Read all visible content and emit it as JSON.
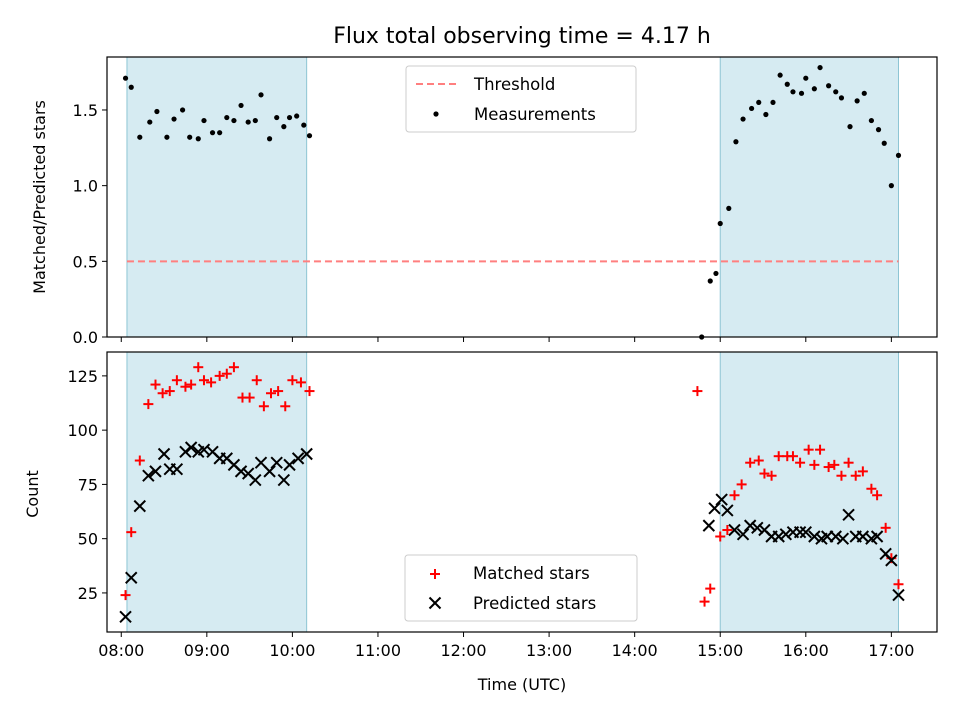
{
  "chart_data": [
    {
      "type": "scatter",
      "title": "Flux total observing time = 4.17 h",
      "xlabel": "",
      "ylabel": "Matched/Predicted stars",
      "xlim": [
        "07:50",
        "17:32"
      ],
      "ylim": [
        0,
        1.85
      ],
      "yticks": [
        0.0,
        0.5,
        1.0,
        1.5
      ],
      "ytick_labels": [
        "0.0",
        "0.5",
        "1.0",
        "1.5"
      ],
      "grid": false,
      "legend_position": "top-center",
      "shaded_intervals": [
        [
          "08:04",
          "10:10"
        ],
        [
          "15:00",
          "17:05"
        ]
      ],
      "threshold": {
        "name": "Threshold",
        "value": 0.5,
        "x_range": [
          "08:04",
          "17:05"
        ],
        "color": "#ff7f7f"
      },
      "series": [
        {
          "name": "Measurements",
          "marker": "dot",
          "color": "#000000",
          "points": [
            [
              "08:03",
              1.71
            ],
            [
              "08:07",
              1.65
            ],
            [
              "08:13",
              1.32
            ],
            [
              "08:20",
              1.42
            ],
            [
              "08:25",
              1.49
            ],
            [
              "08:32",
              1.32
            ],
            [
              "08:37",
              1.44
            ],
            [
              "08:43",
              1.5
            ],
            [
              "08:48",
              1.32
            ],
            [
              "08:54",
              1.31
            ],
            [
              "08:58",
              1.43
            ],
            [
              "09:04",
              1.35
            ],
            [
              "09:09",
              1.35
            ],
            [
              "09:14",
              1.45
            ],
            [
              "09:19",
              1.43
            ],
            [
              "09:24",
              1.53
            ],
            [
              "09:29",
              1.42
            ],
            [
              "09:34",
              1.43
            ],
            [
              "09:38",
              1.6
            ],
            [
              "09:44",
              1.31
            ],
            [
              "09:49",
              1.45
            ],
            [
              "09:54",
              1.39
            ],
            [
              "09:58",
              1.45
            ],
            [
              "10:03",
              1.46
            ],
            [
              "10:08",
              1.4
            ],
            [
              "10:12",
              1.33
            ],
            [
              "14:47",
              0.0
            ],
            [
              "14:53",
              0.37
            ],
            [
              "14:57",
              0.42
            ],
            [
              "15:00",
              0.75
            ],
            [
              "15:06",
              0.85
            ],
            [
              "15:11",
              1.29
            ],
            [
              "15:16",
              1.44
            ],
            [
              "15:22",
              1.51
            ],
            [
              "15:27",
              1.55
            ],
            [
              "15:32",
              1.47
            ],
            [
              "15:37",
              1.55
            ],
            [
              "15:42",
              1.73
            ],
            [
              "15:47",
              1.67
            ],
            [
              "15:51",
              1.62
            ],
            [
              "15:57",
              1.61
            ],
            [
              "16:00",
              1.71
            ],
            [
              "16:06",
              1.64
            ],
            [
              "16:10",
              1.78
            ],
            [
              "16:16",
              1.66
            ],
            [
              "16:21",
              1.62
            ],
            [
              "16:25",
              1.58
            ],
            [
              "16:31",
              1.39
            ],
            [
              "16:36",
              1.56
            ],
            [
              "16:41",
              1.61
            ],
            [
              "16:46",
              1.43
            ],
            [
              "16:51",
              1.37
            ],
            [
              "16:55",
              1.28
            ],
            [
              "17:00",
              1.0
            ],
            [
              "17:05",
              1.2
            ]
          ]
        }
      ]
    },
    {
      "type": "scatter",
      "title": "",
      "xlabel": "Time (UTC)",
      "ylabel": "Count",
      "xlim": [
        "07:50",
        "17:32"
      ],
      "ylim": [
        7,
        136
      ],
      "xticks": [
        "08:00",
        "09:00",
        "10:00",
        "11:00",
        "12:00",
        "13:00",
        "14:00",
        "15:00",
        "16:00",
        "17:00"
      ],
      "yticks": [
        25,
        50,
        75,
        100,
        125
      ],
      "ytick_labels": [
        "25",
        "50",
        "75",
        "100",
        "125"
      ],
      "grid": false,
      "legend_position": "bottom-center",
      "shaded_intervals": [
        [
          "08:04",
          "10:10"
        ],
        [
          "15:00",
          "17:05"
        ]
      ],
      "series": [
        {
          "name": "Matched stars",
          "marker": "plus",
          "color": "#ff0000",
          "points": [
            [
              "08:03",
              24
            ],
            [
              "08:07",
              53
            ],
            [
              "08:13",
              86
            ],
            [
              "08:19",
              112
            ],
            [
              "08:24",
              121
            ],
            [
              "08:29",
              117
            ],
            [
              "08:34",
              118
            ],
            [
              "08:39",
              123
            ],
            [
              "08:45",
              120
            ],
            [
              "08:49",
              121
            ],
            [
              "08:54",
              129
            ],
            [
              "08:58",
              123
            ],
            [
              "09:03",
              122
            ],
            [
              "09:09",
              125
            ],
            [
              "09:14",
              126
            ],
            [
              "09:19",
              129
            ],
            [
              "09:25",
              115
            ],
            [
              "09:30",
              115
            ],
            [
              "09:35",
              123
            ],
            [
              "09:40",
              111
            ],
            [
              "09:45",
              117
            ],
            [
              "09:50",
              118
            ],
            [
              "09:55",
              111
            ],
            [
              "10:00",
              123
            ],
            [
              "10:06",
              122
            ],
            [
              "10:12",
              118
            ],
            [
              "14:44",
              118
            ],
            [
              "14:49",
              21
            ],
            [
              "14:53",
              27
            ],
            [
              "15:00",
              51
            ],
            [
              "15:05",
              54
            ],
            [
              "15:10",
              70
            ],
            [
              "15:15",
              75
            ],
            [
              "15:21",
              85
            ],
            [
              "15:27",
              86
            ],
            [
              "15:31",
              80
            ],
            [
              "15:36",
              79
            ],
            [
              "15:41",
              88
            ],
            [
              "15:47",
              88
            ],
            [
              "15:51",
              88
            ],
            [
              "15:56",
              85
            ],
            [
              "16:02",
              91
            ],
            [
              "16:06",
              84
            ],
            [
              "16:10",
              91
            ],
            [
              "16:16",
              83
            ],
            [
              "16:20",
              84
            ],
            [
              "16:25",
              79
            ],
            [
              "16:30",
              85
            ],
            [
              "16:35",
              79
            ],
            [
              "16:40",
              81
            ],
            [
              "16:46",
              73
            ],
            [
              "16:50",
              70
            ],
            [
              "16:56",
              55
            ],
            [
              "17:00",
              41
            ],
            [
              "17:05",
              29
            ]
          ]
        },
        {
          "name": "Predicted stars",
          "marker": "x",
          "color": "#000000",
          "points": [
            [
              "08:03",
              14
            ],
            [
              "08:07",
              32
            ],
            [
              "08:13",
              65
            ],
            [
              "08:19",
              79
            ],
            [
              "08:24",
              81
            ],
            [
              "08:30",
              89
            ],
            [
              "08:34",
              82
            ],
            [
              "08:39",
              82
            ],
            [
              "08:45",
              90
            ],
            [
              "08:49",
              92
            ],
            [
              "08:54",
              90
            ],
            [
              "08:58",
              91
            ],
            [
              "09:04",
              90
            ],
            [
              "09:09",
              87
            ],
            [
              "09:14",
              87
            ],
            [
              "09:19",
              84
            ],
            [
              "09:24",
              81
            ],
            [
              "09:29",
              80
            ],
            [
              "09:34",
              77
            ],
            [
              "09:38",
              85
            ],
            [
              "09:44",
              81
            ],
            [
              "09:49",
              85
            ],
            [
              "09:54",
              77
            ],
            [
              "09:58",
              84
            ],
            [
              "10:04",
              87
            ],
            [
              "10:10",
              89
            ],
            [
              "14:52",
              56
            ],
            [
              "14:56",
              64
            ],
            [
              "15:01",
              68
            ],
            [
              "15:05",
              63
            ],
            [
              "15:10",
              54
            ],
            [
              "15:16",
              52
            ],
            [
              "15:21",
              56
            ],
            [
              "15:26",
              55
            ],
            [
              "15:31",
              54
            ],
            [
              "15:36",
              51
            ],
            [
              "15:41",
              51
            ],
            [
              "15:46",
              52
            ],
            [
              "15:51",
              53
            ],
            [
              "15:56",
              53
            ],
            [
              "16:00",
              53
            ],
            [
              "16:06",
              51
            ],
            [
              "16:11",
              50
            ],
            [
              "16:15",
              51
            ],
            [
              "16:21",
              51
            ],
            [
              "16:26",
              50
            ],
            [
              "16:30",
              61
            ],
            [
              "16:35",
              51
            ],
            [
              "16:40",
              51
            ],
            [
              "16:46",
              50
            ],
            [
              "16:50",
              51
            ],
            [
              "16:56",
              43
            ],
            [
              "17:00",
              40
            ],
            [
              "17:05",
              24
            ]
          ]
        }
      ]
    }
  ]
}
